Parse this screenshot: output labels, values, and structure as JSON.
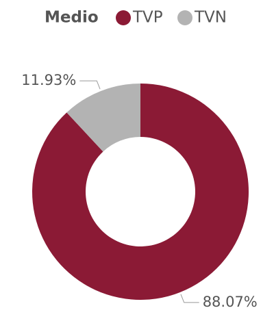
{
  "chart_data": {
    "type": "donut",
    "legend_title": "Medio",
    "categories": [
      "TVP",
      "TVN"
    ],
    "values": [
      88.07,
      11.93
    ],
    "value_labels": [
      "88.07%",
      "11.93%"
    ],
    "colors": [
      "#8b1a35",
      "#b3b3b3"
    ],
    "legend": "top"
  }
}
